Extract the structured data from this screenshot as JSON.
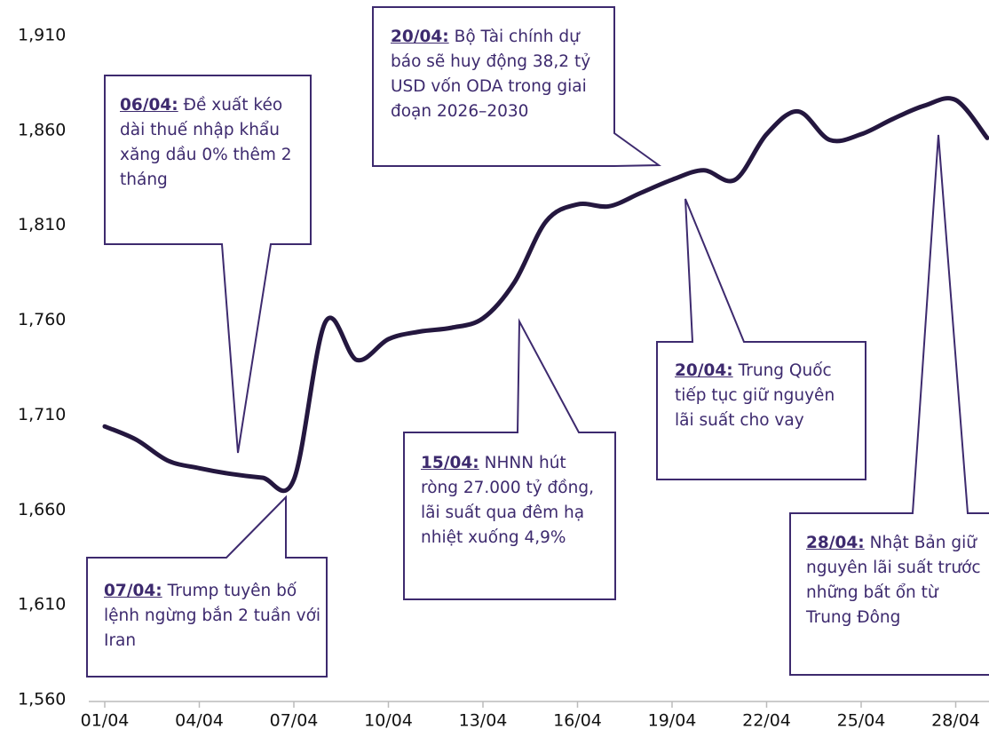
{
  "chart_data": {
    "type": "line",
    "categories": [
      "01/04",
      null,
      null,
      "04/04",
      null,
      null,
      "07/04",
      null,
      null,
      "10/04",
      null,
      null,
      "13/04",
      null,
      null,
      "16/04",
      null,
      null,
      "19/04",
      null,
      null,
      "22/04",
      null,
      null,
      "25/04",
      null,
      null,
      "28/04",
      null
    ],
    "series": [
      {
        "color": "#24173f",
        "values": [
          1704,
          1697,
          1686,
          1682,
          1679,
          1677,
          1676,
          1759,
          1739,
          1750,
          1754,
          1756,
          1761,
          1780,
          1812,
          1821,
          1820,
          1827,
          1834,
          1839,
          1834,
          1858,
          1870,
          1855,
          1858,
          1866,
          1873,
          1876,
          1856
        ]
      }
    ],
    "ylim": [
      1560,
      1910
    ],
    "yticks": [
      {
        "value": 1560,
        "label": "1,560"
      },
      {
        "value": 1610,
        "label": "1,610"
      },
      {
        "value": 1660,
        "label": "1,660"
      },
      {
        "value": 1710,
        "label": "1,710"
      },
      {
        "value": 1760,
        "label": "1,760"
      },
      {
        "value": 1810,
        "label": "1,810"
      },
      {
        "value": 1860,
        "label": "1,860"
      },
      {
        "value": 1910,
        "label": "1,910"
      }
    ],
    "annotations": [
      {
        "date": "06/04:",
        "text": "Đề xuất kéo dài thuế nhập khẩu xăng dầu 0% thêm 2 tháng"
      },
      {
        "date": "07/04:",
        "text": "Trump tuyên bố lệnh ngừng bắn 2 tuần với Iran"
      },
      {
        "date": "20/04:",
        "text": "Bộ Tài chính dự báo sẽ huy động 38,2 tỷ USD vốn ODA trong giai đoạn 2026–2030"
      },
      {
        "date": "15/04:",
        "text": "NHNN hút ròng 27.000 tỷ đồng, lãi suất qua đêm hạ nhiệt xuống 4,9%"
      },
      {
        "date": "20/04:",
        "text": "Trung Quốc tiếp tục giữ nguyên lãi suất cho vay"
      },
      {
        "date": "28/04:",
        "text": "Nhật Bản giữ nguyên lãi suất trước những bất ổn từ Trung Đông"
      }
    ]
  }
}
